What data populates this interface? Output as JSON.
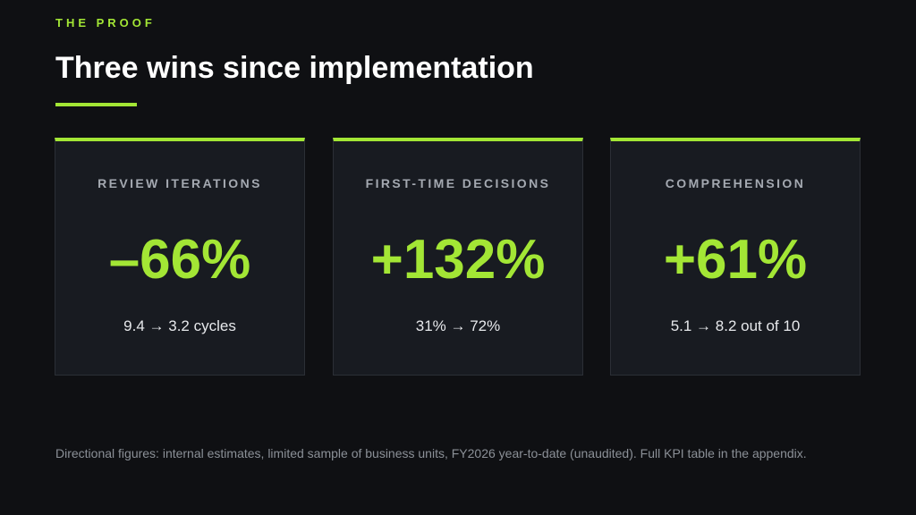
{
  "header": {
    "eyebrow": "THE PROOF",
    "title": "Three wins since implementation"
  },
  "cards": [
    {
      "label": "REVIEW ITERATIONS",
      "value": "–66%",
      "detail": "9.4 → 3.2 cycles"
    },
    {
      "label": "FIRST-TIME DECISIONS",
      "value": "+132%",
      "detail": "31% → 72%"
    },
    {
      "label": "COMPREHENSION",
      "value": "+61%",
      "detail": "5.1 → 8.2 out of 10"
    }
  ],
  "footnote": "Directional figures: internal estimates, limited sample of business units, FY2026 year-to-date (unaudited). Full KPI table in the appendix.",
  "colors": {
    "background": "#0f1013",
    "accent": "#a3e635",
    "card_background": "#181b21",
    "muted_text": "#8b9097"
  }
}
